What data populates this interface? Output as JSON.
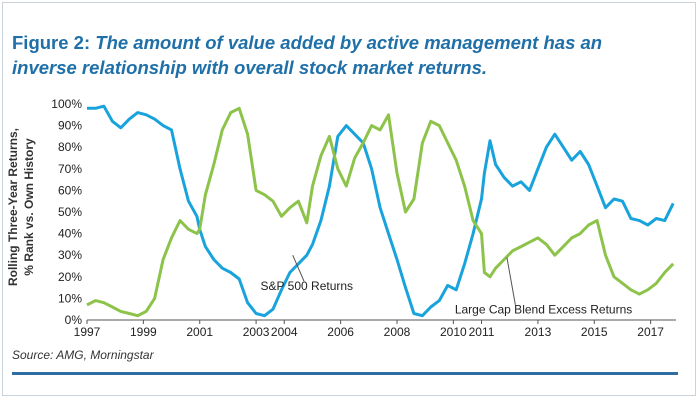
{
  "figure_label": "Figure 2:",
  "title": "The amount of value added by active management has an inverse relationship with overall stock market returns.",
  "source": "Source: AMG, Morningstar",
  "colors": {
    "sp500": "#19a3dc",
    "excess": "#8dc34a",
    "title": "#1f6fa8",
    "rule": "#2f6ea3"
  },
  "chart_data": {
    "type": "line",
    "ylabel": [
      "Rolling Three-Year Returns,",
      "% Rank vs. Own History"
    ],
    "xlabel": "",
    "xlim": [
      1997,
      2017.9
    ],
    "ylim": [
      0,
      100
    ],
    "x_tick_labels": [
      "1997",
      "1999",
      "2001",
      "2003",
      "2004",
      "2006",
      "2008",
      "2010",
      "2011",
      "2013",
      "2015",
      "2017"
    ],
    "x_ticks": [
      1997,
      1999,
      2001,
      2003,
      2004,
      2006,
      2008,
      2010,
      2011,
      2013,
      2015,
      2017
    ],
    "y_ticks": [
      0,
      10,
      20,
      30,
      40,
      50,
      60,
      70,
      80,
      90,
      100
    ],
    "y_tick_labels": [
      "0%",
      "10%",
      "20%",
      "30%",
      "40%",
      "50%",
      "60%",
      "70%",
      "80%",
      "90%",
      "100%"
    ],
    "grid": false,
    "annotations": [
      {
        "text": "S&P 500 Returns",
        "x": 2004.8,
        "y": 14
      },
      {
        "text": "Large Cap Blend Excess Returns",
        "x": 2013.2,
        "y": 3
      }
    ],
    "series": [
      {
        "name": "S&P 500 Returns",
        "x": [
          1997.0,
          1997.3,
          1997.6,
          1997.9,
          1998.2,
          1998.5,
          1998.8,
          1999.1,
          1999.4,
          1999.7,
          2000.0,
          2000.3,
          2000.6,
          2000.9,
          2001.0,
          2001.2,
          2001.5,
          2001.8,
          2002.1,
          2002.4,
          2002.7,
          2003.0,
          2003.3,
          2003.6,
          2003.9,
          2004.2,
          2004.5,
          2004.8,
          2005.0,
          2005.3,
          2005.6,
          2005.9,
          2006.2,
          2006.5,
          2006.8,
          2007.1,
          2007.4,
          2007.7,
          2008.0,
          2008.3,
          2008.6,
          2008.9,
          2009.2,
          2009.5,
          2009.8,
          2010.1,
          2010.4,
          2010.7,
          2011.0,
          2011.1,
          2011.3,
          2011.5,
          2011.8,
          2012.1,
          2012.4,
          2012.7,
          2013.0,
          2013.3,
          2013.6,
          2013.9,
          2014.2,
          2014.5,
          2014.8,
          2015.1,
          2015.4,
          2015.7,
          2016.0,
          2016.3,
          2016.6,
          2016.9,
          2017.2,
          2017.5,
          2017.8
        ],
        "values": [
          98,
          98,
          99,
          92,
          89,
          93,
          96,
          95,
          93,
          90,
          88,
          70,
          55,
          48,
          42,
          34,
          28,
          24,
          22,
          19,
          8,
          3,
          2,
          5,
          14,
          22,
          26,
          30,
          35,
          46,
          62,
          85,
          90,
          86,
          82,
          70,
          52,
          40,
          28,
          15,
          3,
          2,
          6,
          9,
          16,
          14,
          26,
          40,
          56,
          68,
          83,
          72,
          66,
          62,
          64,
          60,
          70,
          80,
          86,
          80,
          74,
          78,
          72,
          62,
          52,
          56,
          55,
          47,
          46,
          44,
          47,
          46,
          54
        ]
      },
      {
        "name": "Large Cap Blend Excess Returns",
        "x": [
          1997.0,
          1997.3,
          1997.6,
          1997.9,
          1998.2,
          1998.5,
          1998.8,
          1999.1,
          1999.4,
          1999.7,
          2000.0,
          2000.3,
          2000.6,
          2000.9,
          2001.0,
          2001.2,
          2001.5,
          2001.8,
          2002.1,
          2002.4,
          2002.7,
          2003.0,
          2003.3,
          2003.6,
          2003.9,
          2004.2,
          2004.5,
          2004.8,
          2005.0,
          2005.3,
          2005.6,
          2005.9,
          2006.2,
          2006.5,
          2006.8,
          2007.1,
          2007.4,
          2007.7,
          2008.0,
          2008.3,
          2008.6,
          2008.9,
          2009.2,
          2009.5,
          2009.8,
          2010.1,
          2010.4,
          2010.7,
          2011.0,
          2011.1,
          2011.3,
          2011.5,
          2011.8,
          2012.1,
          2012.4,
          2012.7,
          2013.0,
          2013.3,
          2013.6,
          2013.9,
          2014.2,
          2014.5,
          2014.8,
          2015.1,
          2015.4,
          2015.7,
          2016.0,
          2016.3,
          2016.6,
          2016.9,
          2017.2,
          2017.5,
          2017.8
        ],
        "values": [
          7,
          9,
          8,
          6,
          4,
          3,
          2,
          4,
          10,
          28,
          38,
          46,
          42,
          40,
          42,
          58,
          72,
          88,
          96,
          98,
          86,
          60,
          58,
          55,
          48,
          52,
          55,
          45,
          62,
          76,
          85,
          70,
          62,
          75,
          82,
          90,
          88,
          95,
          68,
          50,
          56,
          82,
          92,
          90,
          82,
          74,
          62,
          46,
          40,
          22,
          20,
          24,
          28,
          32,
          34,
          36,
          38,
          35,
          30,
          34,
          38,
          40,
          44,
          46,
          30,
          20,
          17,
          14,
          12,
          14,
          17,
          22,
          26
        ]
      }
    ]
  }
}
